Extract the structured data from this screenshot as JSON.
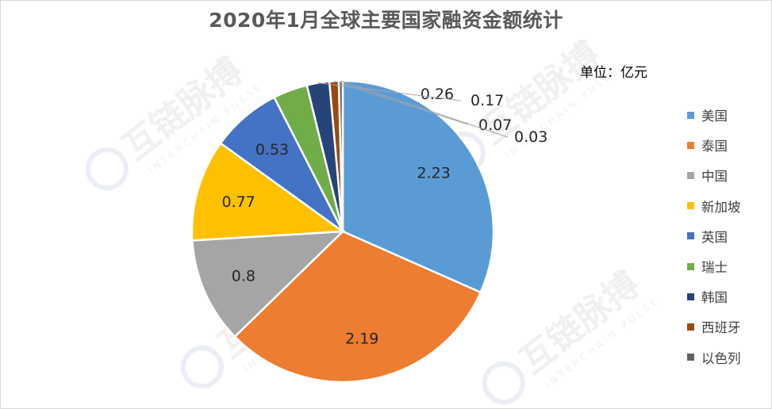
{
  "chart_data": {
    "type": "pie",
    "title": "2020年1月全球主要国家融资金额统计",
    "unit_label": "单位：亿元",
    "legend_position": "right",
    "start_angle_deg": 0,
    "slices": [
      {
        "label": "美国",
        "value": 2.23,
        "color": "#5B9BD5"
      },
      {
        "label": "泰国",
        "value": 2.19,
        "color": "#ED7D31"
      },
      {
        "label": "中国",
        "value": 0.8,
        "color": "#A5A5A5"
      },
      {
        "label": "新加坡",
        "value": 0.77,
        "color": "#FFC000"
      },
      {
        "label": "英国",
        "value": 0.53,
        "color": "#4472C4"
      },
      {
        "label": "瑞士",
        "value": 0.26,
        "color": "#70AD47"
      },
      {
        "label": "韩国",
        "value": 0.17,
        "color": "#264478"
      },
      {
        "label": "西班牙",
        "value": 0.07,
        "color": "#9E480E"
      },
      {
        "label": "以色列",
        "value": 0.03,
        "color": "#636363"
      }
    ]
  },
  "watermark": {
    "brand_cn": "互链脉搏",
    "brand_en": "INTERCHAIN PULSE"
  }
}
